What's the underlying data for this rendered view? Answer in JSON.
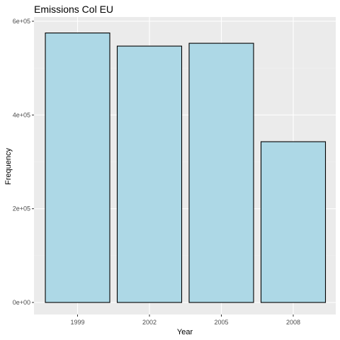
{
  "chart_data": {
    "type": "bar",
    "title": "Emissions Col EU",
    "xlabel": "Year",
    "ylabel": "Frequency",
    "categories": [
      "1999",
      "2002",
      "2005",
      "2008"
    ],
    "values": [
      575000,
      547000,
      553000,
      343000
    ],
    "ylim": [
      0,
      600000
    ],
    "yticks": [
      0,
      200000,
      400000,
      600000
    ],
    "ytick_labels": [
      "0e+00",
      "2e+05",
      "4e+05",
      "6e+05"
    ],
    "grid": true,
    "colors": {
      "panel": "#ebebeb",
      "grid_major": "#ffffff",
      "grid_minor": "#f2f2f2",
      "bar_fill": "#add8e6",
      "bar_stroke": "#000000"
    }
  }
}
